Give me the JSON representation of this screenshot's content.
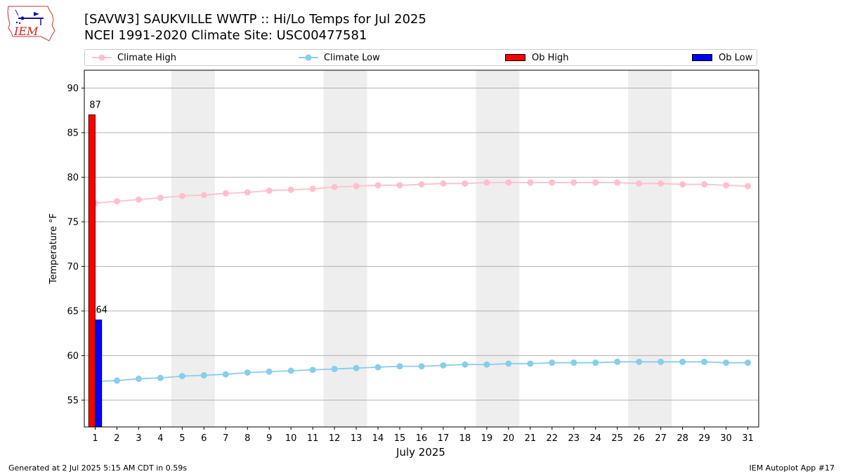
{
  "header": {
    "logo_text": "IEM",
    "title_line1": "[SAVW3] SAUKVILLE WWTP :: Hi/Lo Temps for Jul 2025",
    "title_line2": "NCEI 1991-2020 Climate Site: USC00477581"
  },
  "legend": {
    "climate_high": "Climate High",
    "climate_low": "Climate Low",
    "ob_high": "Ob High",
    "ob_low": "Ob Low"
  },
  "colors": {
    "climate_high": "#ffc0cb",
    "climate_low": "#87ceeb",
    "ob_high": "#ff0000",
    "ob_low": "#0000ff",
    "weekend_band": "#eeeeee",
    "grid": "#b0b0b0"
  },
  "chart_data": {
    "type": "bar+line",
    "xlabel": "July 2025",
    "ylabel": "Temperature °F",
    "xlim": [
      0.5,
      31.5
    ],
    "ylim": [
      52,
      92
    ],
    "yticks": [
      55,
      60,
      65,
      70,
      75,
      80,
      85,
      90
    ],
    "grid": "horizontal",
    "legend_placement": "top",
    "x": [
      1,
      2,
      3,
      4,
      5,
      6,
      7,
      8,
      9,
      10,
      11,
      12,
      13,
      14,
      15,
      16,
      17,
      18,
      19,
      20,
      21,
      22,
      23,
      24,
      25,
      26,
      27,
      28,
      29,
      30,
      31
    ],
    "weekend_bands": [
      [
        4.5,
        6.5
      ],
      [
        11.5,
        13.5
      ],
      [
        18.5,
        20.5
      ],
      [
        25.5,
        27.5
      ]
    ],
    "series": [
      {
        "name": "Climate High",
        "kind": "line",
        "values": [
          77.1,
          77.3,
          77.5,
          77.7,
          77.9,
          78.0,
          78.2,
          78.3,
          78.5,
          78.6,
          78.7,
          78.9,
          79.0,
          79.1,
          79.1,
          79.2,
          79.3,
          79.3,
          79.4,
          79.4,
          79.4,
          79.4,
          79.4,
          79.4,
          79.4,
          79.3,
          79.3,
          79.2,
          79.2,
          79.1,
          79.0
        ]
      },
      {
        "name": "Climate Low",
        "kind": "line",
        "values": [
          57.1,
          57.2,
          57.4,
          57.5,
          57.7,
          57.8,
          57.9,
          58.1,
          58.2,
          58.3,
          58.4,
          58.5,
          58.6,
          58.7,
          58.8,
          58.8,
          58.9,
          59.0,
          59.0,
          59.1,
          59.1,
          59.2,
          59.2,
          59.2,
          59.3,
          59.3,
          59.3,
          59.3,
          59.3,
          59.2,
          59.2
        ]
      },
      {
        "name": "Ob High",
        "kind": "bar",
        "x": [
          1
        ],
        "values": [
          87
        ],
        "labels": [
          "87"
        ]
      },
      {
        "name": "Ob Low",
        "kind": "bar",
        "x": [
          1
        ],
        "values": [
          64
        ],
        "labels": [
          "64"
        ]
      }
    ]
  },
  "footer": {
    "left": "Generated at 2 Jul 2025 5:15 AM CDT in 0.59s",
    "right": "IEM Autoplot App #17"
  }
}
